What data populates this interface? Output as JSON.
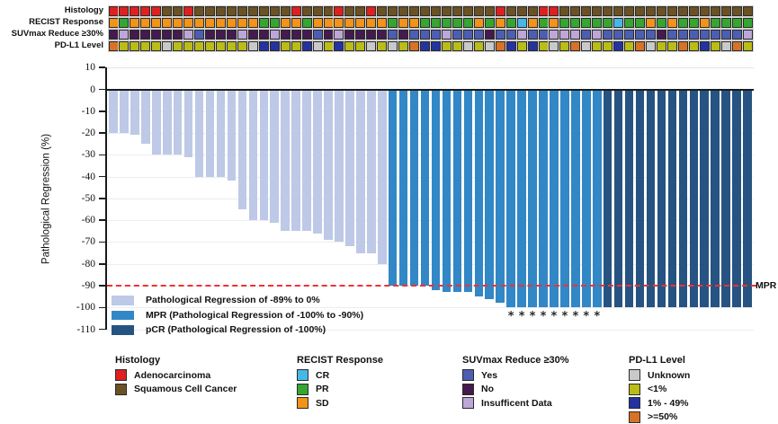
{
  "chart_data": {
    "type": "bar",
    "subtype": "waterfall-with-annotation-tracks",
    "ylabel": "Pathological Regression (%)",
    "ylim": [
      -110,
      10
    ],
    "yticks": [
      10,
      0,
      -10,
      -20,
      -30,
      -40,
      -50,
      -60,
      -70,
      -80,
      -90,
      -100,
      -110
    ],
    "grid": "horizontal-light",
    "n_patients": 60,
    "values": [
      -20,
      -20,
      -21,
      -25,
      -30,
      -30,
      -30,
      -31,
      -40,
      -40,
      -40,
      -42,
      -55,
      -60,
      -60,
      -61,
      -65,
      -65,
      -65,
      -66,
      -69,
      -70,
      -72,
      -75,
      -75,
      -80,
      -90,
      -90,
      -90,
      -90,
      -92,
      -93,
      -93,
      -93,
      -95,
      -96,
      -98,
      -100,
      -100,
      -100,
      -100,
      -100,
      -100,
      -100,
      -100,
      -100,
      -100,
      -100,
      -100,
      -100,
      -100,
      -100,
      -100,
      -100,
      -100,
      -100,
      -100,
      -100,
      -100,
      -100
    ],
    "bar_groups": [
      "L",
      "L",
      "L",
      "L",
      "L",
      "L",
      "L",
      "L",
      "L",
      "L",
      "L",
      "L",
      "L",
      "L",
      "L",
      "L",
      "L",
      "L",
      "L",
      "L",
      "L",
      "L",
      "L",
      "L",
      "L",
      "L",
      "M",
      "M",
      "M",
      "M",
      "M",
      "M",
      "M",
      "M",
      "M",
      "M",
      "M",
      "M",
      "M",
      "M",
      "M",
      "M",
      "M",
      "M",
      "M",
      "M",
      "P",
      "P",
      "P",
      "P",
      "P",
      "P",
      "P",
      "P",
      "P",
      "P",
      "P",
      "P",
      "P",
      "P"
    ],
    "group_colors": {
      "L": "#bdc9e6",
      "M": "#3287c6",
      "P": "#265382"
    },
    "asterisk_bars": [
      38,
      39,
      40,
      41,
      42,
      43,
      44,
      45,
      46
    ],
    "asterisk_symbol": "*",
    "reference_line": {
      "value": -90,
      "label": "MPR",
      "color": "#ee3333",
      "style": "dashed"
    },
    "legend": [
      {
        "key": "L",
        "label": "Pathological Regression of -89% to 0%",
        "color": "#bdc9e6"
      },
      {
        "key": "M",
        "label": "MPR (Pathological Regression of -100% to -90%)",
        "color": "#3287c6"
      },
      {
        "key": "P",
        "label": "pCR (Pathological Regression of -100%)",
        "color": "#265382"
      }
    ],
    "annotation_tracks": {
      "rows": [
        {
          "label": "Histology",
          "key": "histology",
          "cells": [
            "A",
            "A",
            "A",
            "A",
            "A",
            "S",
            "S",
            "A",
            "S",
            "S",
            "S",
            "S",
            "S",
            "S",
            "S",
            "S",
            "S",
            "A",
            "S",
            "S",
            "S",
            "A",
            "S",
            "S",
            "A",
            "S",
            "S",
            "S",
            "S",
            "S",
            "S",
            "S",
            "S",
            "S",
            "S",
            "S",
            "A",
            "S",
            "S",
            "S",
            "A",
            "A",
            "S",
            "S",
            "S",
            "S",
            "S",
            "S",
            "S",
            "S",
            "S",
            "S",
            "S",
            "S",
            "S",
            "S",
            "S",
            "S",
            "S",
            "S"
          ]
        },
        {
          "label": "RECIST Response",
          "key": "recist",
          "cells": [
            "SD",
            "PR",
            "SD",
            "SD",
            "SD",
            "SD",
            "SD",
            "SD",
            "SD",
            "SD",
            "SD",
            "SD",
            "SD",
            "SD",
            "PR",
            "PR",
            "SD",
            "SD",
            "PR",
            "SD",
            "SD",
            "SD",
            "SD",
            "SD",
            "SD",
            "SD",
            "PR",
            "SD",
            "SD",
            "PR",
            "PR",
            "PR",
            "PR",
            "PR",
            "SD",
            "PR",
            "SD",
            "PR",
            "CR",
            "SD",
            "PR",
            "SD",
            "PR",
            "PR",
            "PR",
            "PR",
            "PR",
            "CR",
            "PR",
            "PR",
            "SD",
            "PR",
            "SD",
            "PR",
            "PR",
            "SD",
            "PR",
            "PR",
            "PR",
            "PR"
          ]
        },
        {
          "label": "SUVmax Reduce ≥30%",
          "key": "suvmax",
          "cells": [
            "No",
            "Ins",
            "No",
            "No",
            "No",
            "No",
            "No",
            "Ins",
            "Yes",
            "No",
            "No",
            "No",
            "Ins",
            "No",
            "No",
            "Ins",
            "No",
            "No",
            "No",
            "Yes",
            "No",
            "Ins",
            "No",
            "No",
            "No",
            "No",
            "Yes",
            "No",
            "Yes",
            "Yes",
            "Yes",
            "Ins",
            "Yes",
            "Yes",
            "Yes",
            "No",
            "Yes",
            "Yes",
            "Ins",
            "Yes",
            "Yes",
            "Ins",
            "Ins",
            "Ins",
            "Yes",
            "Ins",
            "Yes",
            "Yes",
            "Yes",
            "Yes",
            "Yes",
            "No",
            "Yes",
            "Yes",
            "Yes",
            "Yes",
            "Yes",
            "Yes",
            "Yes",
            "Ins"
          ]
        },
        {
          "label": "PD-L1 Level",
          "key": "pdl1",
          "cells": [
            "ge50",
            "lt1",
            "lt1",
            "lt1",
            "lt1",
            "un",
            "lt1",
            "lt1",
            "lt1",
            "lt1",
            "lt1",
            "lt1",
            "lt1",
            "un",
            "mid",
            "mid",
            "lt1",
            "lt1",
            "mid",
            "un",
            "lt1",
            "mid",
            "lt1",
            "lt1",
            "un",
            "lt1",
            "un",
            "lt1",
            "ge50",
            "mid",
            "mid",
            "lt1",
            "lt1",
            "un",
            "lt1",
            "un",
            "ge50",
            "mid",
            "lt1",
            "mid",
            "lt1",
            "un",
            "lt1",
            "ge50",
            "un",
            "lt1",
            "lt1",
            "mid",
            "lt1",
            "ge50",
            "un",
            "lt1",
            "lt1",
            "ge50",
            "lt1",
            "mid",
            "lt1",
            "un",
            "ge50",
            "lt1"
          ]
        }
      ],
      "colors": {
        "histology": {
          "A": "#e01f1f",
          "S": "#6b5123"
        },
        "recist": {
          "CR": "#45b8e8",
          "PR": "#35a62f",
          "SD": "#f39318"
        },
        "suvmax": {
          "Yes": "#4c5eb3",
          "No": "#451a4e",
          "Ins": "#bda6d8"
        },
        "pdl1": {
          "un": "#c9c9c9",
          "lt1": "#babc17",
          "mid": "#2433a0",
          "ge50": "#d77226"
        }
      }
    },
    "bottom_legend": [
      {
        "title": "Histology",
        "items": [
          {
            "label": "Adenocarcinoma",
            "color": "#e01f1f"
          },
          {
            "label": "Squamous Cell Cancer",
            "color": "#6b5123"
          }
        ]
      },
      {
        "title": "RECIST Response",
        "items": [
          {
            "label": "CR",
            "color": "#45b8e8"
          },
          {
            "label": "PR",
            "color": "#35a62f"
          },
          {
            "label": "SD",
            "color": "#f39318"
          }
        ]
      },
      {
        "title": "SUVmax Reduce ≥30%",
        "items": [
          {
            "label": "Yes",
            "color": "#4c5eb3"
          },
          {
            "label": "No",
            "color": "#451a4e"
          },
          {
            "label": "Insufficent Data",
            "color": "#bda6d8"
          }
        ]
      },
      {
        "title": "PD-L1 Level",
        "items": [
          {
            "label": "Unknown",
            "color": "#c9c9c9"
          },
          {
            "label": "<1%",
            "color": "#babc17"
          },
          {
            "label": "1% - 49%",
            "color": "#2433a0"
          },
          {
            "label": ">=50%",
            "color": "#d77226"
          }
        ]
      }
    ]
  }
}
